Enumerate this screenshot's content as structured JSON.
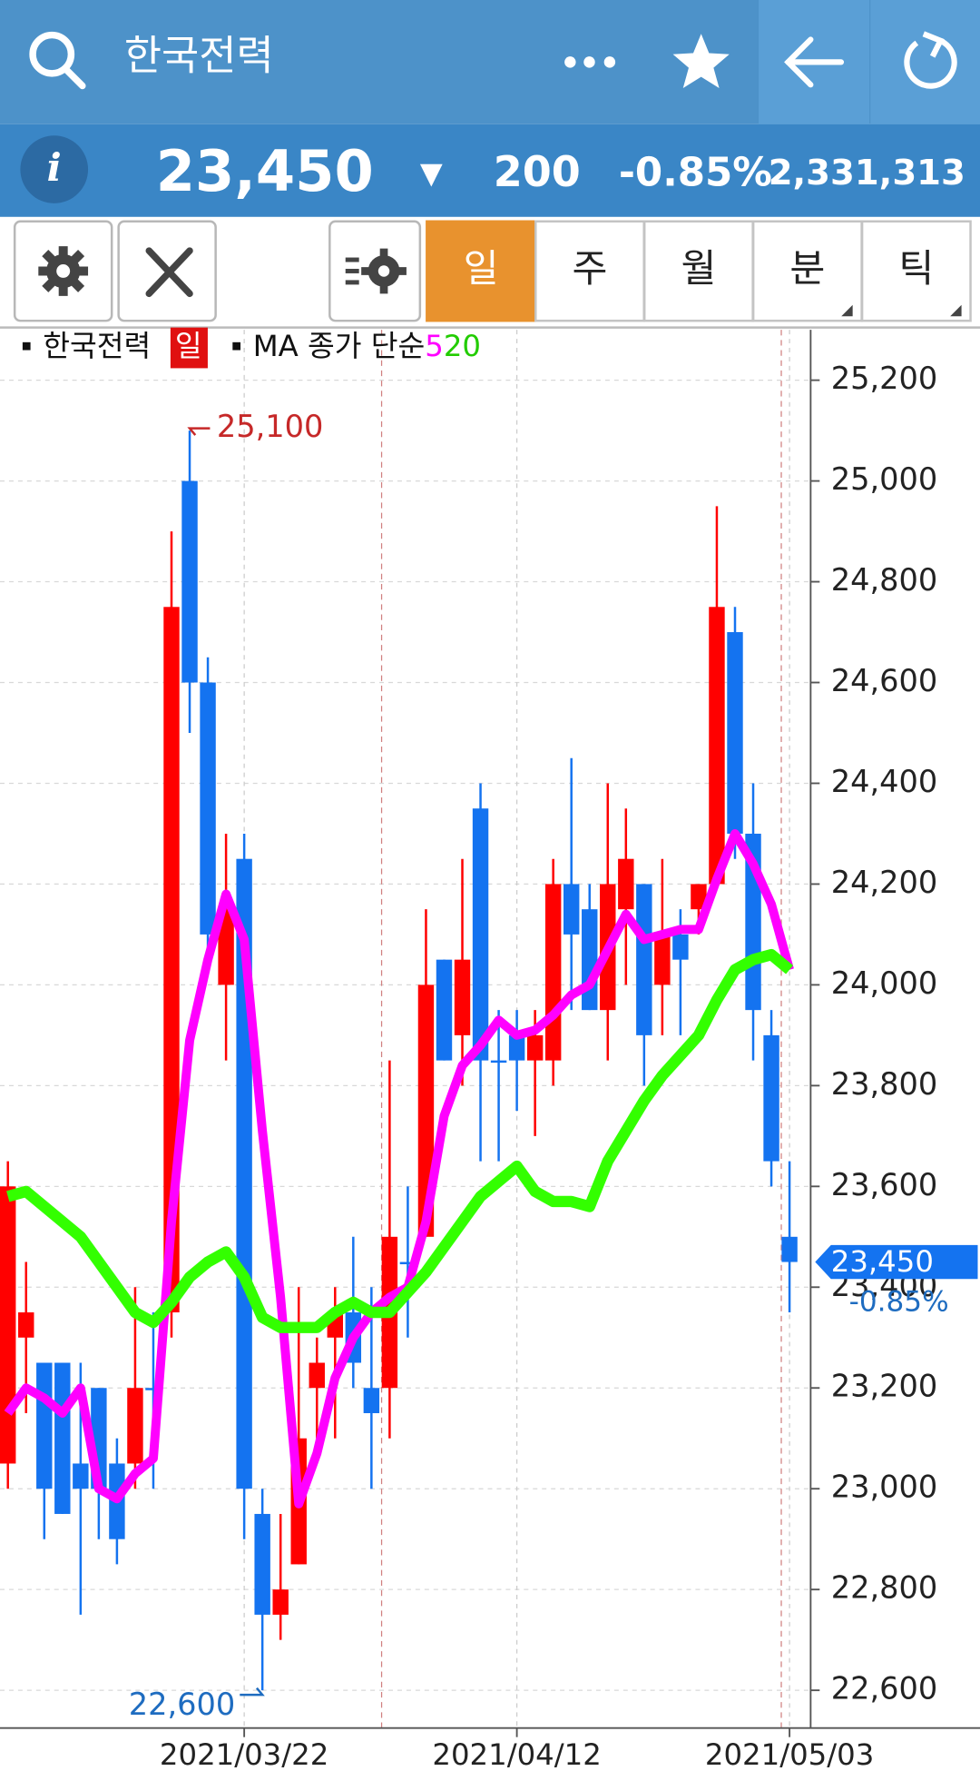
{
  "header": {
    "title": "한국전력"
  },
  "quote": {
    "info": "i",
    "price": "23,450",
    "direction": "▼",
    "change": "200",
    "change_pct": "-0.85%",
    "volume": "2,331,313"
  },
  "toolbar": {
    "tabs": [
      "일",
      "주",
      "월",
      "분",
      "틱"
    ]
  },
  "chart_data": {
    "type": "candlestick",
    "period": "일",
    "ma_label": "MA 종가 단순",
    "categories": [
      null,
      null,
      null,
      null,
      null,
      null,
      null,
      null,
      null,
      null,
      null,
      null,
      null,
      "2021/03/22",
      null,
      null,
      null,
      null,
      null,
      null,
      null,
      null,
      null,
      null,
      null,
      null,
      null,
      null,
      "2021/04/12",
      null,
      null,
      null,
      null,
      null,
      null,
      null,
      null,
      null,
      null,
      null,
      null,
      null,
      null,
      "2021/05/03"
    ],
    "up_color": "#ff0000",
    "down_color": "#1473f0",
    "series": [
      {
        "name": "한국전력",
        "open": [
          23050,
          23300,
          23250,
          23250,
          23050,
          23200,
          23050,
          23050,
          23200,
          23350,
          25000,
          24600,
          24000,
          24250,
          22950,
          22750,
          22850,
          23200,
          23300,
          23350,
          23200,
          23200,
          23450,
          23500,
          24050,
          23900,
          24350,
          23850,
          23900,
          23850,
          23850,
          24200,
          24150,
          23950,
          24150,
          24200,
          24000,
          24100,
          24150,
          24200,
          24700,
          24300,
          23900,
          23500
        ],
        "high": [
          23650,
          23450,
          23250,
          23250,
          23250,
          23200,
          23100,
          23400,
          23350,
          24900,
          25100,
          24650,
          24300,
          24300,
          23000,
          22950,
          23400,
          23300,
          23400,
          23500,
          23400,
          23850,
          23600,
          24150,
          24050,
          24250,
          24400,
          23950,
          23950,
          23950,
          24250,
          24450,
          24200,
          24400,
          24350,
          24200,
          24250,
          24150,
          24200,
          24950,
          24750,
          24400,
          23950,
          23650
        ],
        "low": [
          23000,
          23150,
          22900,
          22950,
          22750,
          22900,
          22850,
          23000,
          23000,
          23300,
          24500,
          24050,
          23850,
          22900,
          22600,
          22700,
          22850,
          23100,
          23100,
          23200,
          23000,
          23100,
          23300,
          23500,
          23850,
          23800,
          23650,
          23650,
          23750,
          23700,
          23800,
          23950,
          23950,
          23850,
          24000,
          23800,
          23900,
          23900,
          24100,
          24200,
          24250,
          23850,
          23600,
          23350
        ],
        "close": [
          23600,
          23350,
          23000,
          22950,
          23000,
          23000,
          22900,
          23200,
          23200,
          24750,
          24600,
          24100,
          24150,
          23000,
          22750,
          22800,
          23100,
          23250,
          23350,
          23250,
          23150,
          23500,
          23450,
          24000,
          23850,
          24050,
          23850,
          23850,
          23850,
          23900,
          24200,
          24100,
          23950,
          24200,
          24250,
          23900,
          24100,
          24050,
          24200,
          24750,
          24300,
          23950,
          23650,
          23450
        ]
      },
      {
        "name": "5",
        "color": "#ff00ff",
        "values": [
          23150,
          23200,
          23180,
          23150,
          23200,
          23000,
          22980,
          23030,
          23060,
          23530,
          23890,
          24050,
          24180,
          24090,
          23710,
          23380,
          22970,
          23070,
          23220,
          23300,
          23350,
          23380,
          23400,
          23530,
          23740,
          23840,
          23880,
          23930,
          23900,
          23910,
          23940,
          23980,
          24000,
          24070,
          24140,
          24090,
          24100,
          24110,
          24110,
          24210,
          24300,
          24240,
          24160,
          24030
        ]
      },
      {
        "name": "20",
        "color": "#33ff00",
        "values": [
          23580,
          23590,
          23560,
          23530,
          23500,
          23450,
          23400,
          23350,
          23330,
          23370,
          23420,
          23450,
          23470,
          23420,
          23340,
          23320,
          23320,
          23320,
          23350,
          23370,
          23350,
          23350,
          23390,
          23430,
          23480,
          23530,
          23580,
          23610,
          23640,
          23590,
          23570,
          23570,
          23560,
          23650,
          23710,
          23770,
          23820,
          23860,
          23900,
          23970,
          24030,
          24050,
          24060,
          24030
        ]
      }
    ],
    "ylim": [
      22525,
      25300
    ],
    "yticks": [
      {
        "value": 22600,
        "label": "22,600"
      },
      {
        "value": 22800,
        "label": "22,800"
      },
      {
        "value": 23000,
        "label": "23,000"
      },
      {
        "value": 23200,
        "label": "23,200"
      },
      {
        "value": 23400,
        "label": "23,400"
      },
      {
        "value": 23600,
        "label": "23,600"
      },
      {
        "value": 23800,
        "label": "23,800"
      },
      {
        "value": 24000,
        "label": "24,000"
      },
      {
        "value": 24200,
        "label": "24,200"
      },
      {
        "value": 24400,
        "label": "24,400"
      },
      {
        "value": 24600,
        "label": "24,600"
      },
      {
        "value": 24800,
        "label": "24,800"
      },
      {
        "value": 25000,
        "label": "25,000"
      },
      {
        "value": 25200,
        "label": "25,200"
      }
    ],
    "grid": true,
    "high_label": {
      "text": "25,100",
      "value": 25100
    },
    "low_label": {
      "text": "22,600",
      "value": 22600
    },
    "last_price": {
      "text": "23,450",
      "value": 23450,
      "change": "-0.85%"
    }
  }
}
